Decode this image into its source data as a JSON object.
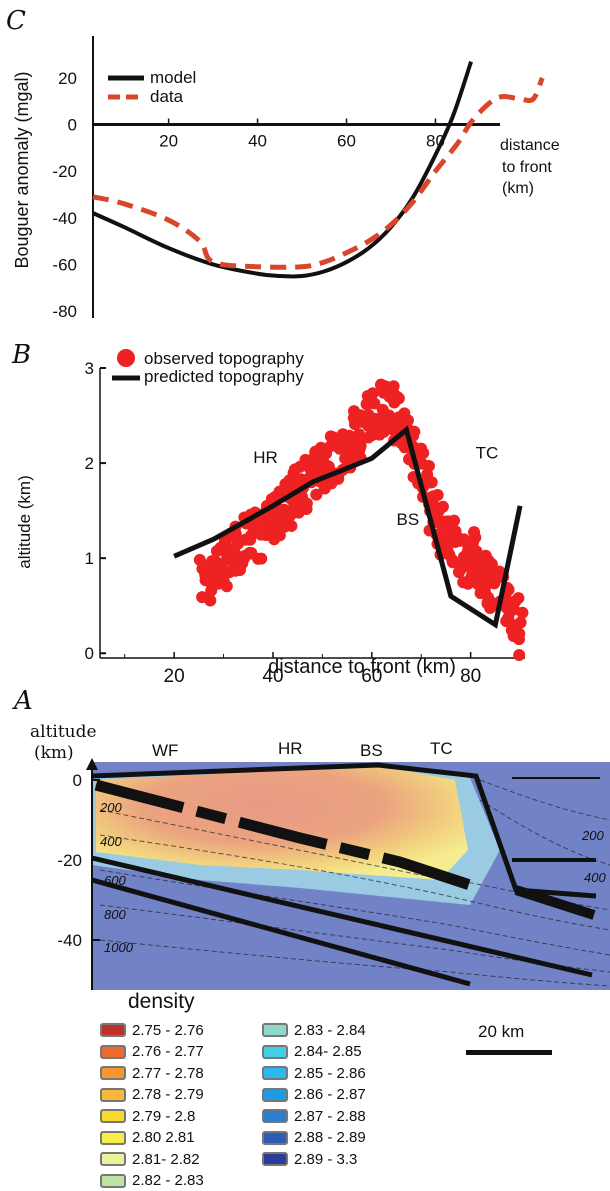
{
  "panels": {
    "c": "C",
    "b": "B",
    "a": "A"
  },
  "chart_data": [
    {
      "type": "line",
      "panel": "C",
      "ylabel": "Bouguer anomaly (mgal)",
      "xlabel_lines": [
        "distance",
        "to front",
        "(km)"
      ],
      "x_ticks": [
        20,
        40,
        60,
        80
      ],
      "y_ticks": [
        20,
        0,
        -20,
        -40,
        -60,
        -80
      ],
      "xlim": [
        3,
        108
      ],
      "ylim": [
        -83,
        38
      ],
      "legend": {
        "position": "top-left"
      },
      "series": [
        {
          "name": "model",
          "color": "#111111",
          "style": "solid",
          "x": [
            3,
            10,
            20,
            30,
            40,
            45,
            50,
            55,
            60,
            65,
            70,
            75,
            80,
            84,
            88
          ],
          "y": [
            -38,
            -44,
            -53,
            -60,
            -64,
            -65,
            -65,
            -63,
            -59,
            -53,
            -44,
            -31,
            -13,
            4,
            27
          ]
        },
        {
          "name": "data",
          "color": "#d9462b",
          "style": "dashed",
          "x": [
            3,
            10,
            20,
            27,
            30,
            40,
            50,
            55,
            60,
            65,
            70,
            75,
            80,
            85,
            88,
            92,
            95,
            99,
            102,
            104
          ],
          "y": [
            -31,
            -34,
            -41,
            -50,
            -59,
            -61,
            -61,
            -59,
            -55,
            -50,
            -43,
            -33,
            -20,
            -8,
            1,
            9,
            12,
            11,
            11,
            20
          ]
        }
      ]
    },
    {
      "type": "scatter",
      "panel": "B",
      "xlabel": "distance to front (km)",
      "ylabel": "altitude (km)",
      "x_ticks": [
        20,
        40,
        60,
        80
      ],
      "y_ticks": [
        0,
        1,
        2,
        3
      ],
      "xlim": [
        5,
        91
      ],
      "ylim": [
        -0.05,
        3.0
      ],
      "legend": {
        "position": "top-left"
      },
      "observed": {
        "name": "observed topography",
        "color": "#ee2222",
        "x": [
          26,
          27,
          28,
          29,
          30,
          31,
          32,
          33,
          34,
          35,
          36,
          37,
          38,
          39,
          40,
          41,
          42,
          43,
          44,
          45,
          46,
          47,
          48,
          49,
          50,
          51,
          52,
          53,
          54,
          55,
          56,
          57,
          58,
          59,
          60,
          61,
          62,
          63,
          64,
          65,
          66,
          67,
          68,
          69,
          70,
          71,
          72,
          73,
          74,
          75,
          76,
          77,
          78,
          79,
          80,
          81,
          82,
          83,
          84,
          85,
          86,
          87,
          88,
          89,
          90
        ],
        "y": [
          0.75,
          0.8,
          0.85,
          0.9,
          0.95,
          1.0,
          1.05,
          1.1,
          1.15,
          1.2,
          1.2,
          1.25,
          1.3,
          1.35,
          1.4,
          1.5,
          1.55,
          1.6,
          1.65,
          1.7,
          1.75,
          1.8,
          1.85,
          1.9,
          1.95,
          2.0,
          2.05,
          2.1,
          2.15,
          2.2,
          2.25,
          2.3,
          2.4,
          2.45,
          2.5,
          2.55,
          2.6,
          2.6,
          2.55,
          2.5,
          2.35,
          2.3,
          2.25,
          2.1,
          1.95,
          1.75,
          1.55,
          1.4,
          1.3,
          1.2,
          1.15,
          1.1,
          1.05,
          1.0,
          1.0,
          0.95,
          0.9,
          0.85,
          0.75,
          0.65,
          0.6,
          0.55,
          0.45,
          0.35,
          0.25
        ]
      },
      "predicted": {
        "name": "predicted topography",
        "color": "#111111",
        "x": [
          20,
          28,
          40,
          48,
          60,
          67,
          76,
          85,
          90
        ],
        "y": [
          1.02,
          1.2,
          1.55,
          1.8,
          2.05,
          2.35,
          0.6,
          0.3,
          1.55
        ]
      },
      "annotations": [
        {
          "text": "HR",
          "x": 36,
          "y": 2.0
        },
        {
          "text": "BS",
          "x": 65,
          "y": 1.35
        },
        {
          "text": "TC",
          "x": 81,
          "y": 2.05
        }
      ]
    }
  ],
  "section": {
    "ylabel_lines": [
      "altitude",
      "(km)"
    ],
    "y_ticks": [
      0,
      -20,
      -40
    ],
    "contour_labels": [
      "200",
      "400",
      "600",
      "800",
      "1000",
      "200",
      "400"
    ],
    "labels": [
      "WF",
      "HR",
      "BS",
      "TC"
    ]
  },
  "density_legend": {
    "title": "density",
    "col1": [
      {
        "label": "2.75 - 2.76",
        "color": "#c0302a"
      },
      {
        "label": "2.76 - 2.77",
        "color": "#ec6a2e"
      },
      {
        "label": "2.77 - 2.78",
        "color": "#f5962e"
      },
      {
        "label": "2.78 - 2.79",
        "color": "#f8b83a"
      },
      {
        "label": "2.79 - 2.8",
        "color": "#f7d92e"
      },
      {
        "label": "2.80 2.81",
        "color": "#f6ec4a"
      },
      {
        "label": "2.81- 2.82",
        "color": "#e9f19a"
      },
      {
        "label": "2.82 - 2.83",
        "color": "#bfe3a2"
      }
    ],
    "col2": [
      {
        "label": "2.83 - 2.84",
        "color": "#8fd7c9"
      },
      {
        "label": "2.84- 2.85",
        "color": "#45cfe6"
      },
      {
        "label": "2.85 - 2.86",
        "color": "#2bb8ee"
      },
      {
        "label": "2.86 - 2.87",
        "color": "#1f9be6"
      },
      {
        "label": "2.87 - 2.88",
        "color": "#2a7dd0"
      },
      {
        "label": "2.88 - 2.89",
        "color": "#2e5db5"
      },
      {
        "label": "2.89 - 3.3",
        "color": "#2c3c9a"
      }
    ]
  },
  "scalebar": {
    "label": "20 km"
  }
}
